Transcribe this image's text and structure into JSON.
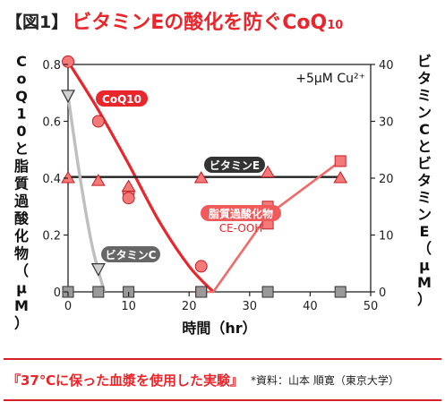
{
  "title": {
    "tag": "【図1】",
    "main": "ビタミンEの酸化を防ぐCoQ",
    "sub": "10"
  },
  "footer": {
    "note": "『37℃に保った血漿を使用した実験』",
    "source": "*資料：山本 順寛（東京大学）"
  },
  "chart_data": {
    "type": "line",
    "condition_label": "+5μM Cu²⁺",
    "xlabel": "時間（hr）",
    "ylabel_left": "CoQ10と脂質過酸化物（μM）",
    "ylabel_right": "ビタミンCとビタミンE（μM）",
    "xlim": [
      0,
      50
    ],
    "ylim_left": [
      0,
      0.8
    ],
    "ylim_right": [
      0,
      40
    ],
    "xticks": [
      "0",
      "10",
      "20",
      "30",
      "40",
      "50"
    ],
    "yticks_left": [
      "0",
      "0.2",
      "0.4",
      "0.6",
      "0.8"
    ],
    "yticks_right": [
      "0",
      "10",
      "20",
      "30",
      "40"
    ],
    "series": [
      {
        "name": "CoQ10",
        "axis": "left",
        "color": "#e8262b",
        "marker": "circle",
        "points": [
          [
            0,
            0.81
          ],
          [
            5,
            0.6
          ],
          [
            10,
            0.35
          ],
          [
            10,
            0.33
          ],
          [
            22,
            0.09
          ]
        ],
        "curve": [
          [
            0,
            0.81
          ],
          [
            5,
            0.64
          ],
          [
            10,
            0.45
          ],
          [
            15,
            0.25
          ],
          [
            20,
            0.09
          ],
          [
            24,
            0.0
          ]
        ]
      },
      {
        "name": "ビタミンE",
        "axis": "right",
        "color": "#222222",
        "marker": "triangle",
        "points": [
          [
            0,
            20
          ],
          [
            5,
            19.5
          ],
          [
            10,
            18.5
          ],
          [
            22,
            20
          ],
          [
            33,
            21
          ],
          [
            45,
            20
          ]
        ],
        "curve": [
          [
            0,
            20.2
          ],
          [
            45,
            20.2
          ]
        ]
      },
      {
        "name": "脂質過酸化物",
        "series_label_2": "CE-OOH",
        "axis": "left",
        "color": "#e8262b",
        "marker": "square",
        "points": [
          [
            0,
            0.0
          ],
          [
            22,
            0.0
          ],
          [
            33,
            0.24
          ],
          [
            33,
            0.3
          ],
          [
            45,
            0.46
          ]
        ],
        "curve": [
          [
            21,
            0.0
          ],
          [
            24,
            0.0
          ],
          [
            33,
            0.27
          ],
          [
            45,
            0.46
          ]
        ]
      },
      {
        "name": "ビタミンC",
        "axis": "right",
        "color": "#555555",
        "marker": "inverted-triangle",
        "points": [
          [
            0,
            34.5
          ],
          [
            5,
            4.0
          ]
        ],
        "curve": [
          [
            0,
            34.5
          ],
          [
            2,
            20
          ],
          [
            4,
            8
          ],
          [
            6,
            0
          ]
        ]
      },
      {
        "name": "baseline-markers",
        "axis": "left",
        "color": "#777777",
        "marker": "gray-square",
        "points": [
          [
            0,
            0.0
          ],
          [
            5,
            0.0
          ],
          [
            10,
            0.0
          ],
          [
            22,
            0.0
          ],
          [
            33,
            0.0
          ],
          [
            45,
            0.0
          ]
        ]
      }
    ]
  }
}
